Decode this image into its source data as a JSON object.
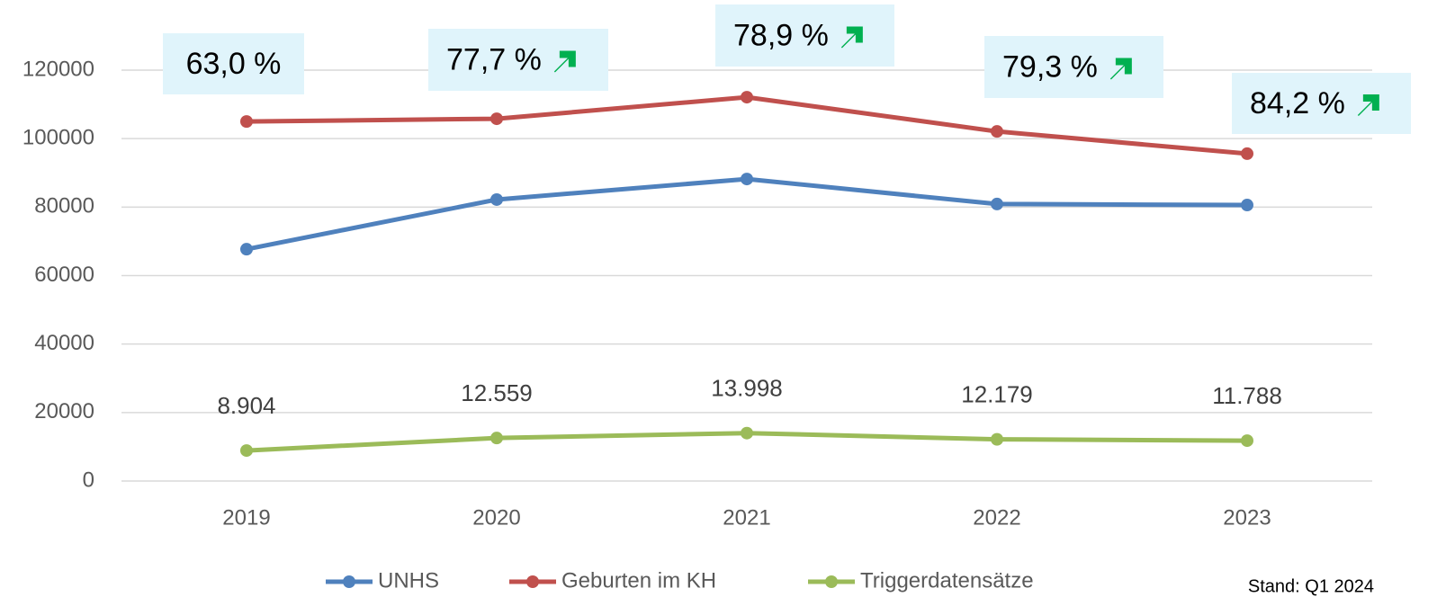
{
  "chart_data": {
    "type": "line",
    "categories": [
      "2019",
      "2020",
      "2021",
      "2022",
      "2023"
    ],
    "series": [
      {
        "name": "UNHS",
        "color": "#4f81bd",
        "values": [
          67700,
          82200,
          88200,
          80900,
          80600
        ]
      },
      {
        "name": "Geburten im KH",
        "color": "#c0504d",
        "values": [
          105000,
          105800,
          112100,
          102100,
          95600
        ]
      },
      {
        "name": "Triggerdatensätze",
        "color": "#9bbb59",
        "values": [
          8904,
          12559,
          13998,
          12179,
          11788
        ],
        "value_labels": [
          "8.904",
          "12.559",
          "13.998",
          "12.179",
          "11.788"
        ]
      }
    ],
    "annotations": [
      {
        "text": "63,0 %",
        "arrow": false
      },
      {
        "text": "77,7 %",
        "arrow": true
      },
      {
        "text": "78,9 %",
        "arrow": true
      },
      {
        "text": "79,3 %",
        "arrow": true
      },
      {
        "text": "84,2 %",
        "arrow": true
      }
    ],
    "ylim": [
      0,
      120000
    ],
    "yticks": [
      0,
      20000,
      40000,
      60000,
      80000,
      100000,
      120000
    ],
    "grid": true,
    "legend": "bottom",
    "note": "Stand: Q1 2024"
  }
}
